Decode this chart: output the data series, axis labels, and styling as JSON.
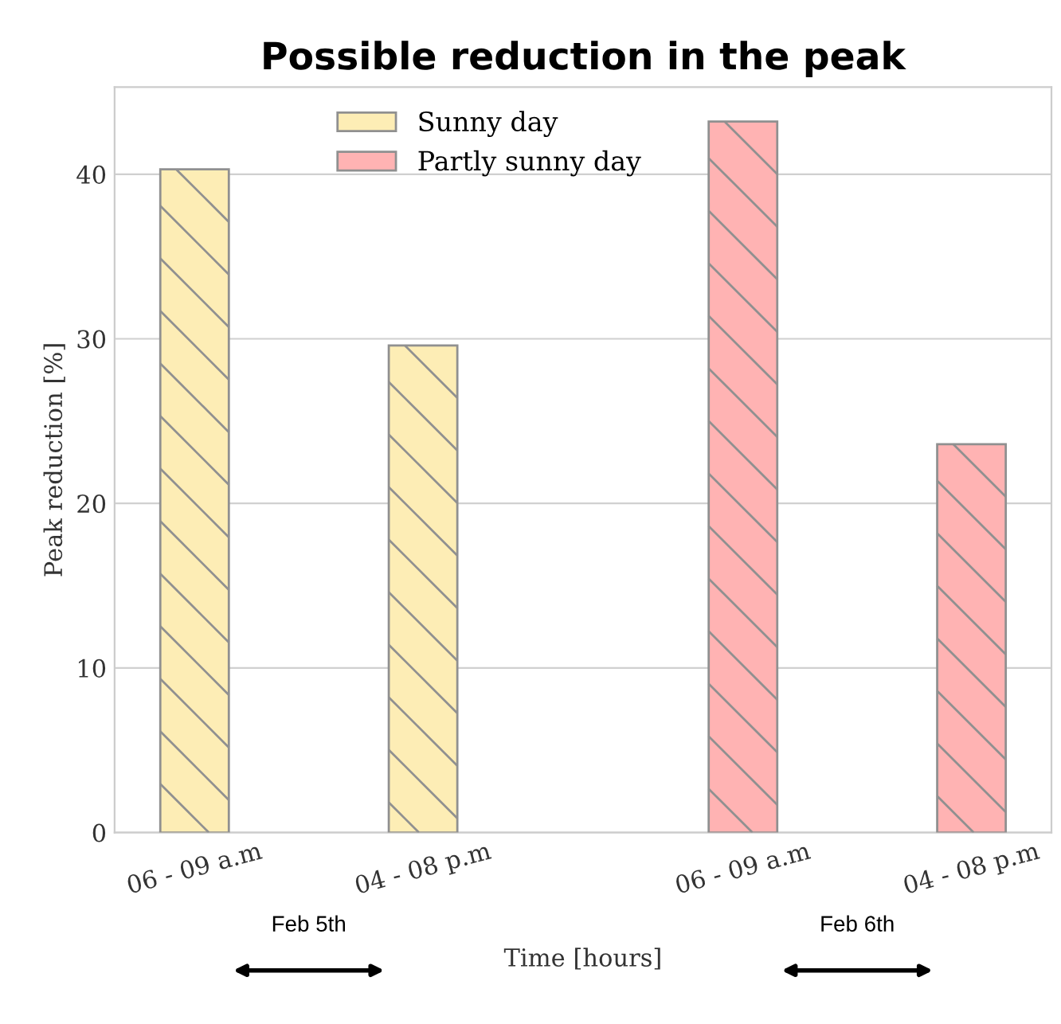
{
  "chart_data": {
    "type": "bar",
    "title": "Possible reduction in the peak",
    "xlabel": "Time [hours]",
    "ylabel": "Peak reduction [%]",
    "categories": [
      "06 - 09 a.m",
      "04 - 08 p.m",
      "06 - 09 a.m",
      "04 - 08 p.m"
    ],
    "series": [
      {
        "name": "Sunny day",
        "color": "#fdedb5",
        "values": [
          40.3,
          29.6,
          null,
          null
        ]
      },
      {
        "name": "Partly sunny day",
        "color": "#ffb3b3",
        "values": [
          null,
          null,
          43.2,
          23.6
        ]
      }
    ],
    "ylim": [
      0,
      45.3
    ],
    "yticks": [
      0,
      10,
      20,
      30,
      40
    ],
    "grid": "y",
    "legend": "top",
    "annotations": [
      "Feb 5th",
      "Feb 6th"
    ]
  }
}
